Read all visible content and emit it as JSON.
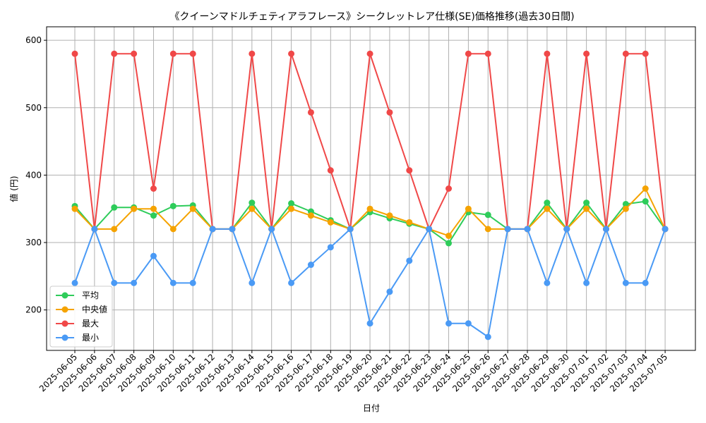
{
  "chart_data": {
    "type": "line",
    "title": "《クイーンマドルチェティアラフレース》シークレットレア仕様(SE)価格推移(過去30日間)",
    "xlabel": "日付",
    "ylabel": "値 (円)",
    "ylim": [
      140,
      620
    ],
    "yticks": [
      200,
      300,
      400,
      500,
      600
    ],
    "grid": true,
    "legend_position": "lower-left",
    "categories": [
      "2025-06-05",
      "2025-06-06",
      "2025-06-07",
      "2025-06-08",
      "2025-06-09",
      "2025-06-10",
      "2025-06-11",
      "2025-06-12",
      "2025-06-13",
      "2025-06-14",
      "2025-06-15",
      "2025-06-16",
      "2025-06-17",
      "2025-06-18",
      "2025-06-19",
      "2025-06-20",
      "2025-06-21",
      "2025-06-22",
      "2025-06-23",
      "2025-06-24",
      "2025-06-25",
      "2025-06-26",
      "2025-06-27",
      "2025-06-28",
      "2025-06-29",
      "2025-06-30",
      "2025-07-01",
      "2025-07-02",
      "2025-07-03",
      "2025-07-04",
      "2025-07-05"
    ],
    "series": [
      {
        "name": "平均",
        "color": "#2ecc5a",
        "values": [
          354,
          320,
          352,
          352,
          340,
          354,
          355,
          320,
          320,
          359,
          320,
          358,
          346,
          333,
          320,
          345,
          336,
          328,
          320,
          299,
          345,
          341,
          320,
          320,
          359,
          320,
          359,
          320,
          357,
          361,
          320
        ]
      },
      {
        "name": "中央値",
        "color": "#f5a300",
        "values": [
          350,
          320,
          320,
          350,
          350,
          320,
          350,
          320,
          320,
          350,
          320,
          350,
          340,
          330,
          320,
          350,
          340,
          330,
          320,
          310,
          350,
          320,
          320,
          320,
          350,
          320,
          350,
          320,
          350,
          380,
          320
        ]
      },
      {
        "name": "最大",
        "color": "#f04848",
        "values": [
          580,
          320,
          580,
          580,
          380,
          580,
          580,
          320,
          320,
          580,
          320,
          580,
          493,
          407,
          320,
          580,
          493,
          407,
          320,
          380,
          580,
          580,
          320,
          320,
          580,
          320,
          580,
          320,
          580,
          580,
          320
        ]
      },
      {
        "name": "最小",
        "color": "#4a9af5",
        "values": [
          240,
          320,
          240,
          240,
          280,
          240,
          240,
          320,
          320,
          240,
          320,
          240,
          267,
          293,
          320,
          180,
          227,
          273,
          320,
          180,
          180,
          160,
          320,
          320,
          240,
          320,
          240,
          320,
          240,
          240,
          320
        ]
      }
    ]
  }
}
